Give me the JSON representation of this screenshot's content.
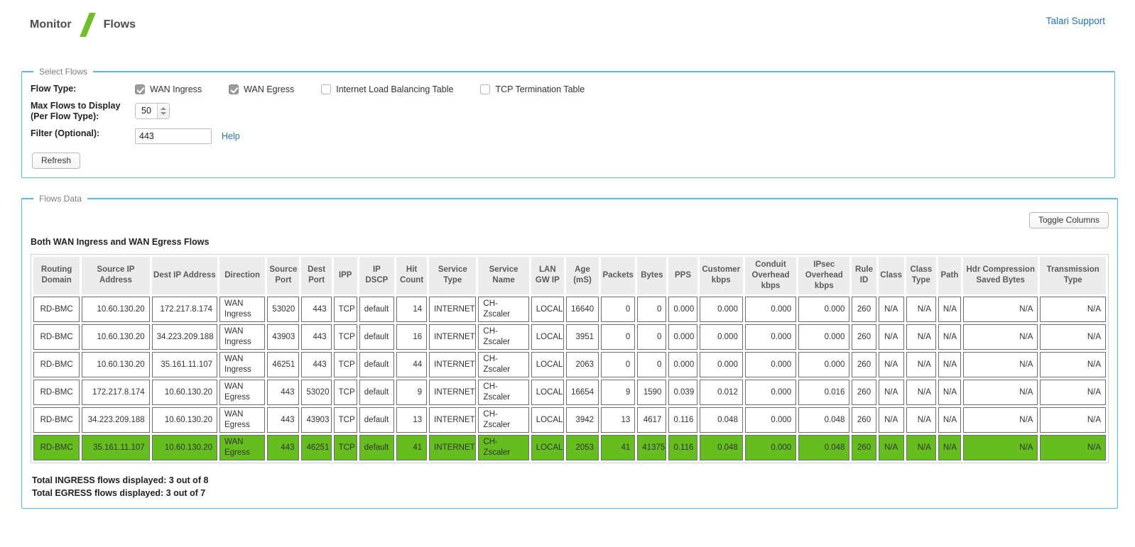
{
  "header": {
    "breadcrumb": {
      "section": "Monitor",
      "page": "Flows"
    },
    "support_link": "Talari Support"
  },
  "select_flows": {
    "legend": "Select Flows",
    "flow_type_label": "Flow Type:",
    "flow_types": [
      {
        "label": "WAN Ingress",
        "checked": true
      },
      {
        "label": "WAN Egress",
        "checked": true
      },
      {
        "label": "Internet Load Balancing Table",
        "checked": false
      },
      {
        "label": "TCP Termination Table",
        "checked": false
      }
    ],
    "max_flows_label": "Max Flows to Display (Per Flow Type):",
    "max_flows_value": "50",
    "filter_label": "Filter (Optional):",
    "filter_value": "443",
    "help_label": "Help",
    "refresh_label": "Refresh"
  },
  "flows_data": {
    "legend": "Flows Data",
    "toggle_columns_label": "Toggle Columns",
    "table_title": "Both WAN Ingress and WAN Egress Flows",
    "table": {
      "columns": [
        "Routing Domain",
        "Source IP Address",
        "Dest IP Address",
        "Direction",
        "Source Port",
        "Dest Port",
        "IPP",
        "IP DSCP",
        "Hit Count",
        "Service Type",
        "Service Name",
        "LAN GW IP",
        "Age (mS)",
        "Packets",
        "Bytes",
        "PPS",
        "Customer kbps",
        "Conduit Overhead kbps",
        "IPsec Overhead kbps",
        "Rule ID",
        "Class",
        "Class Type",
        "Path",
        "Hdr Compression Saved Bytes",
        "Transmission Type"
      ],
      "rows": [
        {
          "highlighted": false,
          "cells": [
            "RD-BMC",
            "10.60.130.20",
            "172.217.8.174",
            "WAN Ingress",
            "53020",
            "443",
            "TCP",
            "default",
            "14",
            "INTERNET",
            "CH-Zscaler",
            "LOCAL",
            "16640",
            "0",
            "0",
            "0.000",
            "0.000",
            "0.000",
            "0.000",
            "260",
            "N/A",
            "N/A",
            "N/A",
            "N/A",
            "N/A"
          ]
        },
        {
          "highlighted": false,
          "cells": [
            "RD-BMC",
            "10.60.130.20",
            "34.223.209.188",
            "WAN Ingress",
            "43903",
            "443",
            "TCP",
            "default",
            "16",
            "INTERNET",
            "CH-Zscaler",
            "LOCAL",
            "3951",
            "0",
            "0",
            "0.000",
            "0.000",
            "0.000",
            "0.000",
            "260",
            "N/A",
            "N/A",
            "N/A",
            "N/A",
            "N/A"
          ]
        },
        {
          "highlighted": false,
          "cells": [
            "RD-BMC",
            "10.60.130.20",
            "35.161.11.107",
            "WAN Ingress",
            "46251",
            "443",
            "TCP",
            "default",
            "44",
            "INTERNET",
            "CH-Zscaler",
            "LOCAL",
            "2063",
            "0",
            "0",
            "0.000",
            "0.000",
            "0.000",
            "0.000",
            "260",
            "N/A",
            "N/A",
            "N/A",
            "N/A",
            "N/A"
          ]
        },
        {
          "highlighted": false,
          "cells": [
            "RD-BMC",
            "172.217.8.174",
            "10.60.130.20",
            "WAN Egress",
            "443",
            "53020",
            "TCP",
            "default",
            "9",
            "INTERNET",
            "CH-Zscaler",
            "LOCAL",
            "16654",
            "9",
            "1590",
            "0.039",
            "0.012",
            "0.000",
            "0.016",
            "260",
            "N/A",
            "N/A",
            "N/A",
            "N/A",
            "N/A"
          ]
        },
        {
          "highlighted": false,
          "cells": [
            "RD-BMC",
            "34.223.209.188",
            "10.60.130.20",
            "WAN Egress",
            "443",
            "43903",
            "TCP",
            "default",
            "13",
            "INTERNET",
            "CH-Zscaler",
            "LOCAL",
            "3942",
            "13",
            "4617",
            "0.116",
            "0.048",
            "0.000",
            "0.048",
            "260",
            "N/A",
            "N/A",
            "N/A",
            "N/A",
            "N/A"
          ]
        },
        {
          "highlighted": true,
          "cells": [
            "RD-BMC",
            "35.161.11.107",
            "10.60.130.20",
            "WAN Egress",
            "443",
            "46251",
            "TCP",
            "default",
            "41",
            "INTERNET",
            "CH-Zscaler",
            "LOCAL",
            "2053",
            "41",
            "41375",
            "0.116",
            "0.048",
            "0.000",
            "0.048",
            "260",
            "N/A",
            "N/A",
            "N/A",
            "N/A",
            "N/A"
          ]
        }
      ]
    },
    "totals": [
      "Total INGRESS flows displayed: 3 out of 8",
      "Total EGRESS flows displayed: 3 out of 7"
    ]
  },
  "colors": {
    "accent_blue": "#56b7e8",
    "highlight_green": "#65bd1f",
    "link_blue": "#2374b5",
    "slash_green": "#72bd2c"
  }
}
